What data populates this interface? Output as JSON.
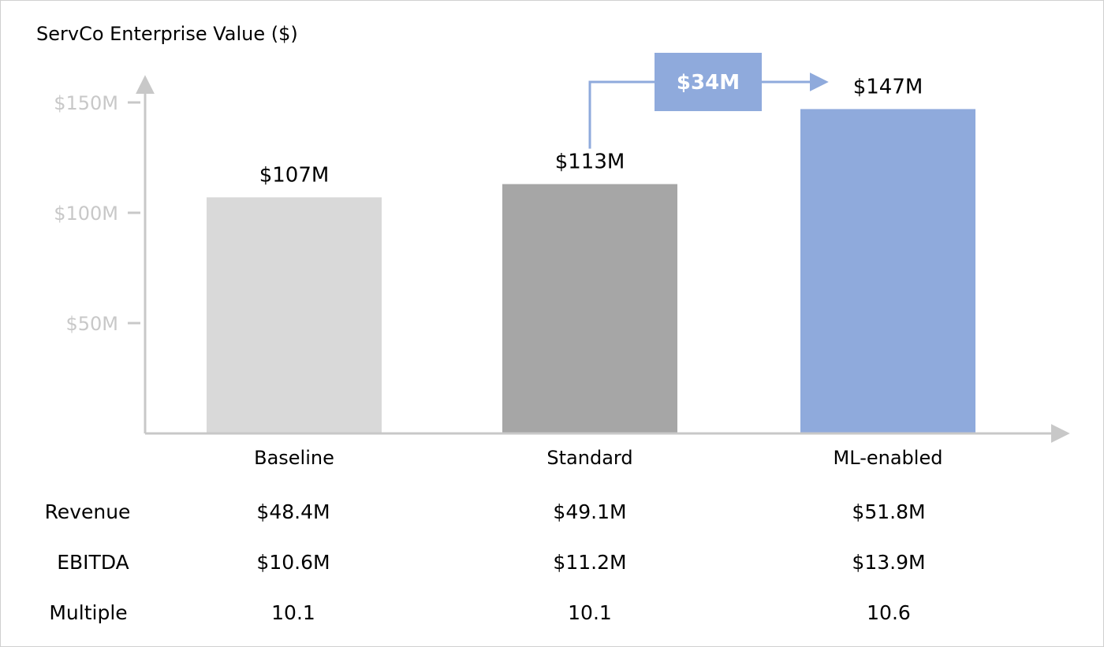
{
  "chart_data": {
    "type": "bar",
    "title": "ServCo Enterprise Value ($)",
    "categories": [
      "Baseline",
      "Standard",
      "ML-enabled"
    ],
    "values": [
      107,
      113,
      147
    ],
    "value_labels": [
      "$107M",
      "$113M",
      "$147M"
    ],
    "ylim": [
      0,
      160
    ],
    "yticks": [
      50,
      100,
      150
    ],
    "ytick_labels": [
      "$50M",
      "$100M",
      "$150M"
    ],
    "grid": false,
    "bar_colors": [
      "#d9d9d9",
      "#a6a6a6",
      "#8faadc"
    ],
    "axis_color": "#c8c8c8",
    "annotation": {
      "label": "$34M",
      "from_category": "Standard",
      "to_category": "ML-enabled",
      "color": "#8faadc"
    }
  },
  "table": {
    "rows": [
      {
        "label": "Revenue",
        "values": [
          "$48.4M",
          "$49.1M",
          "$51.8M"
        ]
      },
      {
        "label": "EBITDA",
        "values": [
          "$10.6M",
          "$11.2M",
          "$13.9M"
        ]
      },
      {
        "label": "Multiple",
        "values": [
          "10.1",
          "10.1",
          "10.6"
        ]
      }
    ]
  }
}
